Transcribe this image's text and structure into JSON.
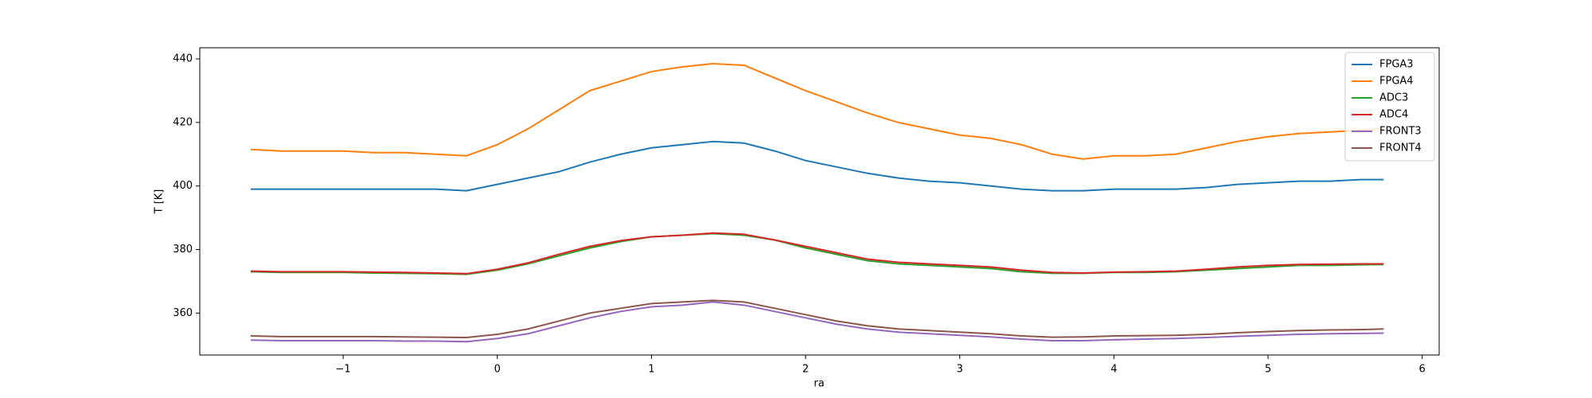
{
  "chart_data": {
    "type": "line",
    "x_label": "ra",
    "y_label": "T [K]",
    "x": [
      -1.6,
      -1.4,
      -1.2,
      -1.0,
      -0.8,
      -0.6,
      -0.4,
      -0.2,
      0,
      0.2,
      0.4,
      0.6,
      0.8,
      1.0,
      1.2,
      1.4,
      1.6,
      1.8,
      2.0,
      2.2,
      2.4,
      2.6,
      2.8,
      3.0,
      3.2,
      3.4,
      3.6,
      3.8,
      4.0,
      4.2,
      4.4,
      4.6,
      4.8,
      5.0,
      5.2,
      5.4,
      5.6,
      5.75
    ],
    "series": [
      {
        "name": "FPGA3",
        "color": "#1f77b4",
        "values": [
          399,
          399,
          399,
          399,
          399,
          399,
          399,
          398.5,
          400.5,
          402.5,
          404.5,
          407.5,
          410,
          412,
          413,
          414,
          413.5,
          411,
          408,
          406,
          404,
          402.5,
          401.5,
          401,
          400,
          399,
          398.5,
          398.5,
          399,
          399,
          399,
          399.5,
          400.5,
          401,
          401.5,
          401.5,
          402,
          402
        ]
      },
      {
        "name": "FPGA4",
        "color": "#ff7f0e",
        "values": [
          411.5,
          411,
          411,
          411,
          410.5,
          410.5,
          410,
          409.5,
          413,
          418,
          424,
          430,
          433,
          436,
          437.5,
          438.5,
          438,
          434,
          430,
          426.5,
          423,
          420,
          418,
          416,
          415,
          413,
          410,
          408.5,
          409.5,
          409.5,
          410,
          412,
          414,
          415.5,
          416.5,
          417,
          417.5,
          418
        ]
      },
      {
        "name": "ADC3",
        "color": "#2ca02c",
        "values": [
          373,
          372.8,
          372.8,
          372.8,
          372.6,
          372.5,
          372.4,
          372.2,
          373.5,
          375.5,
          378,
          380.5,
          382.5,
          384,
          384.5,
          385,
          384.5,
          383,
          380.5,
          378.5,
          376.5,
          375.5,
          375,
          374.5,
          374,
          373,
          372.5,
          372.5,
          372.8,
          372.8,
          373,
          373.5,
          374,
          374.5,
          375,
          375,
          375.2,
          375.3
        ]
      },
      {
        "name": "ADC4",
        "color": "#d62728",
        "values": [
          373.2,
          373,
          373,
          373,
          372.9,
          372.8,
          372.6,
          372.4,
          373.8,
          375.8,
          378.5,
          381,
          382.8,
          384,
          384.5,
          385.2,
          384.8,
          383,
          381,
          379,
          377,
          376,
          375.5,
          375,
          374.5,
          373.5,
          372.8,
          372.6,
          372.9,
          373,
          373.2,
          373.8,
          374.5,
          375,
          375.3,
          375.4,
          375.5,
          375.5
        ]
      },
      {
        "name": "FRONT3",
        "color": "#9467bd",
        "values": [
          351.5,
          351.3,
          351.3,
          351.3,
          351.3,
          351.2,
          351.2,
          351,
          352,
          353.5,
          356,
          358.5,
          360.5,
          362,
          362.5,
          363.5,
          362.5,
          360.5,
          358.5,
          356.5,
          355,
          354,
          353.5,
          353,
          352.5,
          351.8,
          351.3,
          351.3,
          351.6,
          351.8,
          352,
          352.3,
          352.7,
          353,
          353.3,
          353.5,
          353.6,
          353.7
        ]
      },
      {
        "name": "FRONT4",
        "color": "#8c564b",
        "values": [
          352.8,
          352.6,
          352.6,
          352.6,
          352.6,
          352.5,
          352.4,
          352.3,
          353.3,
          355,
          357.5,
          360,
          361.5,
          363,
          363.5,
          364,
          363.5,
          361.5,
          359.5,
          357.5,
          356,
          355,
          354.5,
          354,
          353.5,
          352.8,
          352.4,
          352.5,
          352.8,
          352.9,
          353,
          353.3,
          353.8,
          354.2,
          354.5,
          354.7,
          354.8,
          355
        ]
      }
    ],
    "xlim": [
      -1.93,
      6.11
    ],
    "ylim": [
      346.8,
      443.5
    ],
    "xticks": [
      {
        "value": -1,
        "label": "−1"
      },
      0,
      1,
      2,
      3,
      4,
      5,
      6
    ],
    "yticks": [
      360,
      380,
      400,
      420,
      440
    ],
    "legend": "upper right"
  }
}
